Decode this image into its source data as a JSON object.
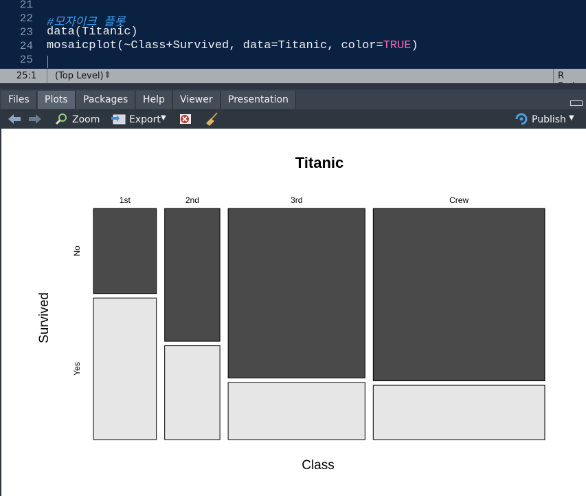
{
  "editor": {
    "lines": [
      {
        "number": "21"
      },
      {
        "number": "22",
        "tokens": [
          {
            "text": "#모자이크 플롯",
            "kind": "comment"
          }
        ]
      },
      {
        "number": "23",
        "tokens": [
          {
            "text": "data(Titanic)",
            "kind": "plain"
          }
        ]
      },
      {
        "number": "24",
        "tokens": [
          {
            "text": "mosaicplot(~Class+Survived, data=Titanic, color=",
            "kind": "plain"
          },
          {
            "text": "TRUE",
            "kind": "constant"
          },
          {
            "text": ")",
            "kind": "plain"
          }
        ]
      },
      {
        "number": "25"
      }
    ]
  },
  "status_bar": {
    "position": "25:1",
    "scope": "(Top Level)",
    "file_type": "R Scrip"
  },
  "tabs": [
    "Files",
    "Plots",
    "Packages",
    "Help",
    "Viewer",
    "Presentation"
  ],
  "active_tab": 1,
  "toolbar": {
    "zoom": "Zoom",
    "export": "Export",
    "publish": "Publish"
  },
  "chart_data": {
    "type": "mosaic",
    "title": "Titanic",
    "x_label": "Class",
    "y_label": "Survived",
    "categories": [
      "1st",
      "2nd",
      "3rd",
      "Crew"
    ],
    "series": [
      {
        "name": "No",
        "color": "#4a4a4a",
        "values": [
          122,
          167,
          528,
          673
        ]
      },
      {
        "name": "Yes",
        "color": "#e6e6e6",
        "values": [
          203,
          118,
          178,
          212
        ]
      }
    ]
  }
}
